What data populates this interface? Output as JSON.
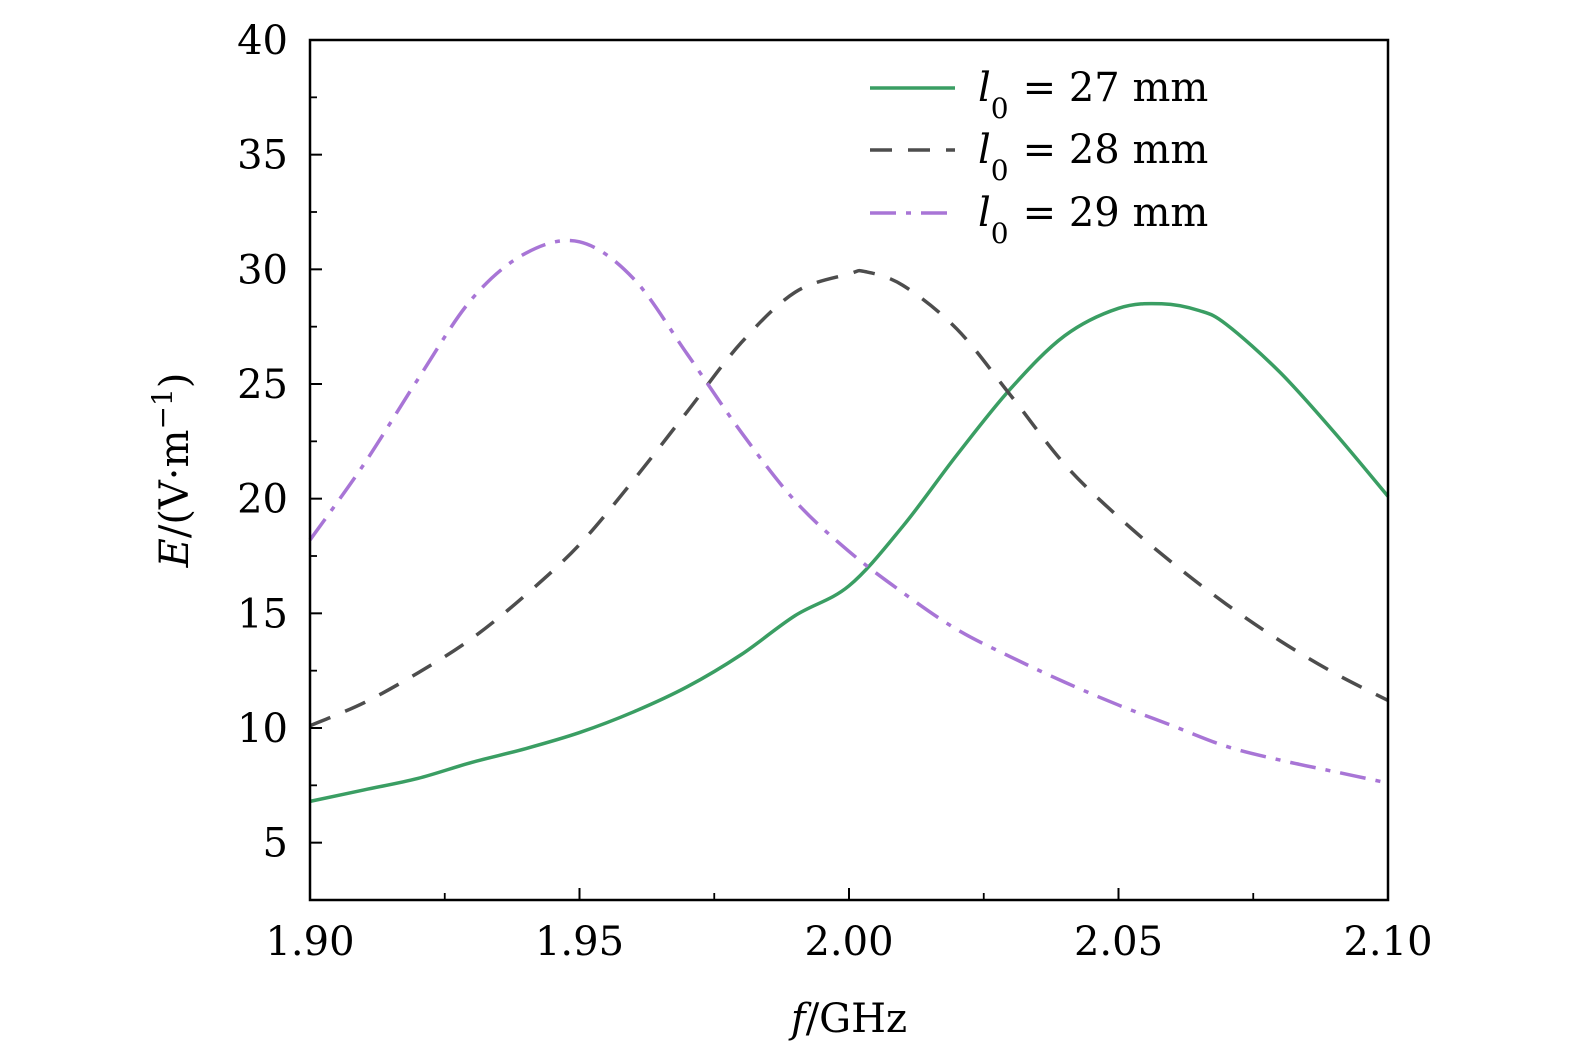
{
  "chart_data": {
    "type": "line",
    "title": "",
    "xlabel": "f/GHz",
    "ylabel": "E/(V·m−1)",
    "xlim": [
      1.9,
      2.1
    ],
    "ylim": [
      2.5,
      40
    ],
    "xticks": [
      1.9,
      1.95,
      2.0,
      2.05,
      2.1
    ],
    "xtick_labels": [
      "1.90",
      "1.95",
      "2.00",
      "2.05",
      "2.10"
    ],
    "yticks": [
      5,
      10,
      15,
      20,
      25,
      30,
      35,
      40
    ],
    "ytick_labels": [
      "5",
      "10",
      "15",
      "20",
      "25",
      "30",
      "35",
      "40"
    ],
    "legend_position": "top-right",
    "series": [
      {
        "name": "l0 = 27 mm",
        "legend_label": "= 27 mm",
        "color": "#3a9e63",
        "style": "solid",
        "x": [
          1.9,
          1.91,
          1.92,
          1.93,
          1.94,
          1.95,
          1.96,
          1.97,
          1.98,
          1.99,
          2.0,
          2.01,
          2.02,
          2.03,
          2.04,
          2.05,
          2.058,
          2.065,
          2.07,
          2.08,
          2.09,
          2.1
        ],
        "y": [
          6.8,
          7.3,
          7.8,
          8.5,
          9.1,
          9.8,
          10.7,
          11.8,
          13.2,
          14.9,
          16.2,
          18.8,
          21.9,
          24.8,
          27.1,
          28.3,
          28.5,
          28.2,
          27.6,
          25.5,
          22.9,
          20.1
        ]
      },
      {
        "name": "l0 = 28 mm",
        "legend_label": "= 28 mm",
        "color": "#4d4d4d",
        "style": "dashed",
        "x": [
          1.9,
          1.91,
          1.92,
          1.93,
          1.94,
          1.95,
          1.96,
          1.97,
          1.98,
          1.99,
          2.0,
          2.003,
          2.01,
          2.02,
          2.03,
          2.04,
          2.05,
          2.06,
          2.07,
          2.08,
          2.09,
          2.1
        ],
        "y": [
          10.1,
          11.1,
          12.4,
          13.9,
          15.8,
          18.0,
          20.8,
          23.8,
          26.8,
          29.0,
          29.8,
          29.9,
          29.3,
          27.4,
          24.5,
          21.5,
          19.2,
          17.2,
          15.4,
          13.8,
          12.4,
          11.2
        ]
      },
      {
        "name": "l0 = 29 mm",
        "legend_label": "= 29 mm",
        "color": "#a875d6",
        "style": "dashdot",
        "x": [
          1.9,
          1.91,
          1.92,
          1.93,
          1.94,
          1.95,
          1.96,
          1.97,
          1.98,
          1.99,
          2.0,
          2.01,
          2.02,
          2.03,
          2.04,
          2.05,
          2.06,
          2.07,
          2.08,
          2.09,
          2.1
        ],
        "y": [
          18.2,
          21.5,
          25.2,
          28.7,
          30.7,
          31.2,
          29.6,
          26.3,
          22.9,
          19.9,
          17.7,
          15.9,
          14.3,
          13.1,
          12.0,
          11.0,
          10.1,
          9.2,
          8.6,
          8.1,
          7.6
        ]
      }
    ]
  }
}
